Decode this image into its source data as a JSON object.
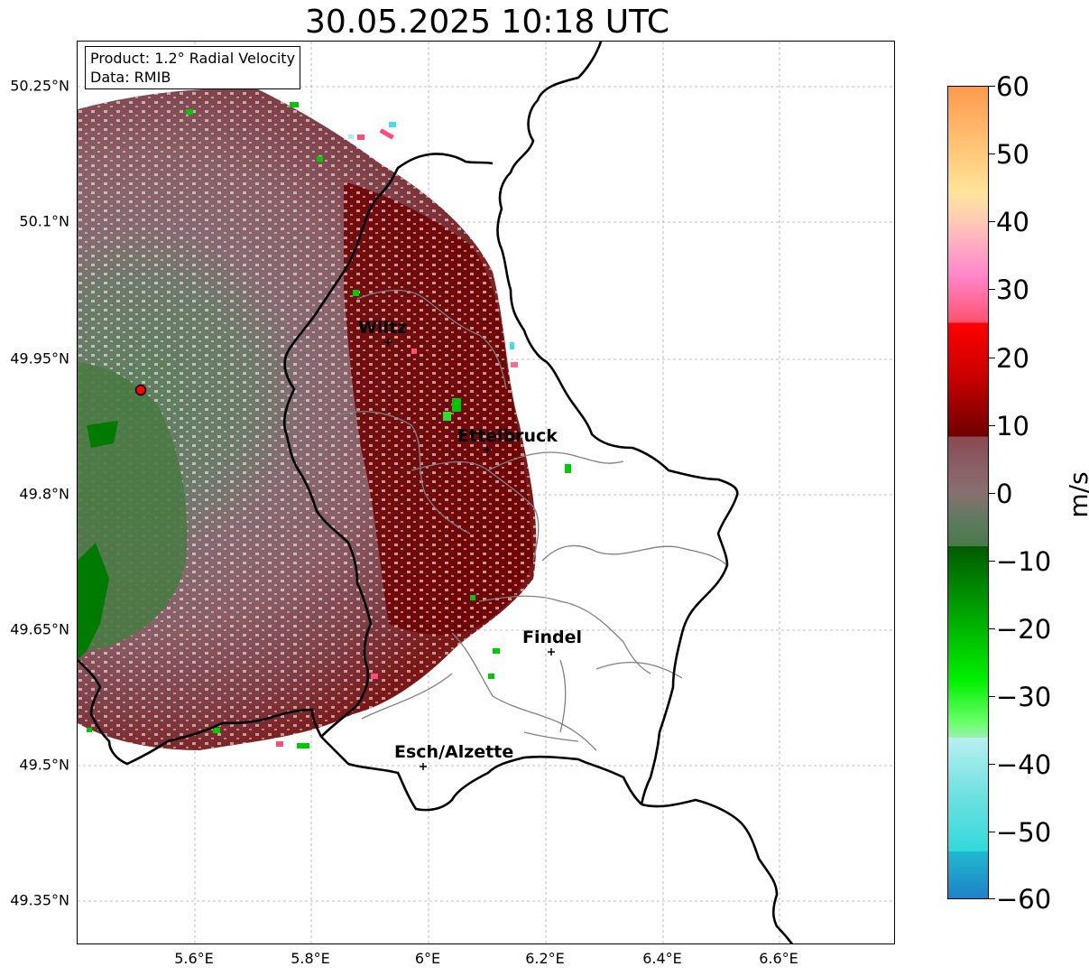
{
  "title": "30.05.2025 10:18 UTC",
  "info": {
    "product": "Product: 1.2° Radial Velocity",
    "data": "Data: RMIB"
  },
  "lat_ticks": [
    "50.25°N",
    "50.1°N",
    "49.95°N",
    "49.8°N",
    "49.65°N",
    "49.5°N",
    "49.35°N"
  ],
  "lon_ticks": [
    "5.6°E",
    "5.8°E",
    "6°E",
    "6.2°E",
    "6.4°E",
    "6.6°E"
  ],
  "cities": [
    {
      "name": "Wiltz"
    },
    {
      "name": "Ettelbruck"
    },
    {
      "name": "Findel"
    },
    {
      "name": "Esch/Alzette"
    }
  ],
  "colorbar": {
    "label": "m/s",
    "ticks": [
      "60",
      "50",
      "40",
      "30",
      "20",
      "10",
      "0",
      "−10",
      "−20",
      "−30",
      "−40",
      "−50",
      "−60"
    ],
    "range": [
      -60,
      60
    ],
    "colors": {
      "pos_high": "#ff9a4d",
      "pos_orange": "#ffc87a",
      "pos_pink": "#ff88cc",
      "pos_red": "#ff0000",
      "pos_darkred": "#6e0000",
      "near_zero_pos": "#8a5a62",
      "near_zero_neg": "#5a7a5a",
      "neg_green": "#00c800",
      "neg_lightgreen": "#66ff66",
      "neg_cyan": "#40e0e0",
      "neg_blue": "#1e88c8"
    }
  },
  "radar_site_color": "#ff0000",
  "map_background": "#ffffff"
}
